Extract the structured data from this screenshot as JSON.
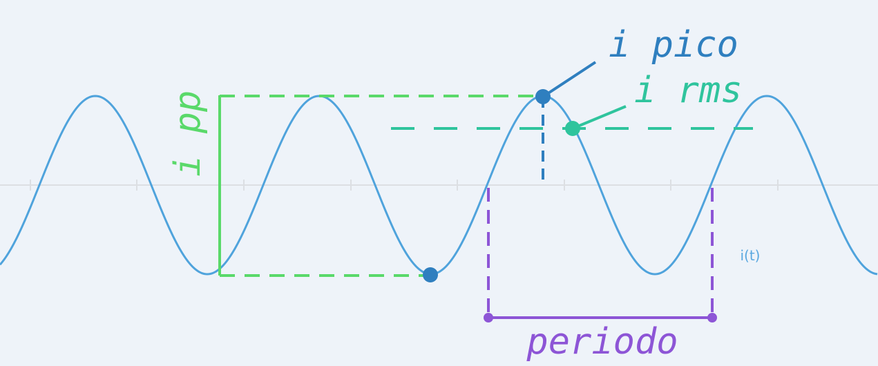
{
  "labels": {
    "i_pico": "i pico",
    "i_rms": "i rms",
    "i_pp": "i pp",
    "periodo": "periodo",
    "trace": "i(t)"
  },
  "colors": {
    "background": "#eef3f9",
    "wave": "#4fa3dc",
    "axis": "#dcdfe3",
    "pico": "#2f7fbf",
    "rms": "#2fc49d",
    "pp": "#5ad96a",
    "periodo": "#8d55d6",
    "trace_label": "#5aa8e0"
  }
}
